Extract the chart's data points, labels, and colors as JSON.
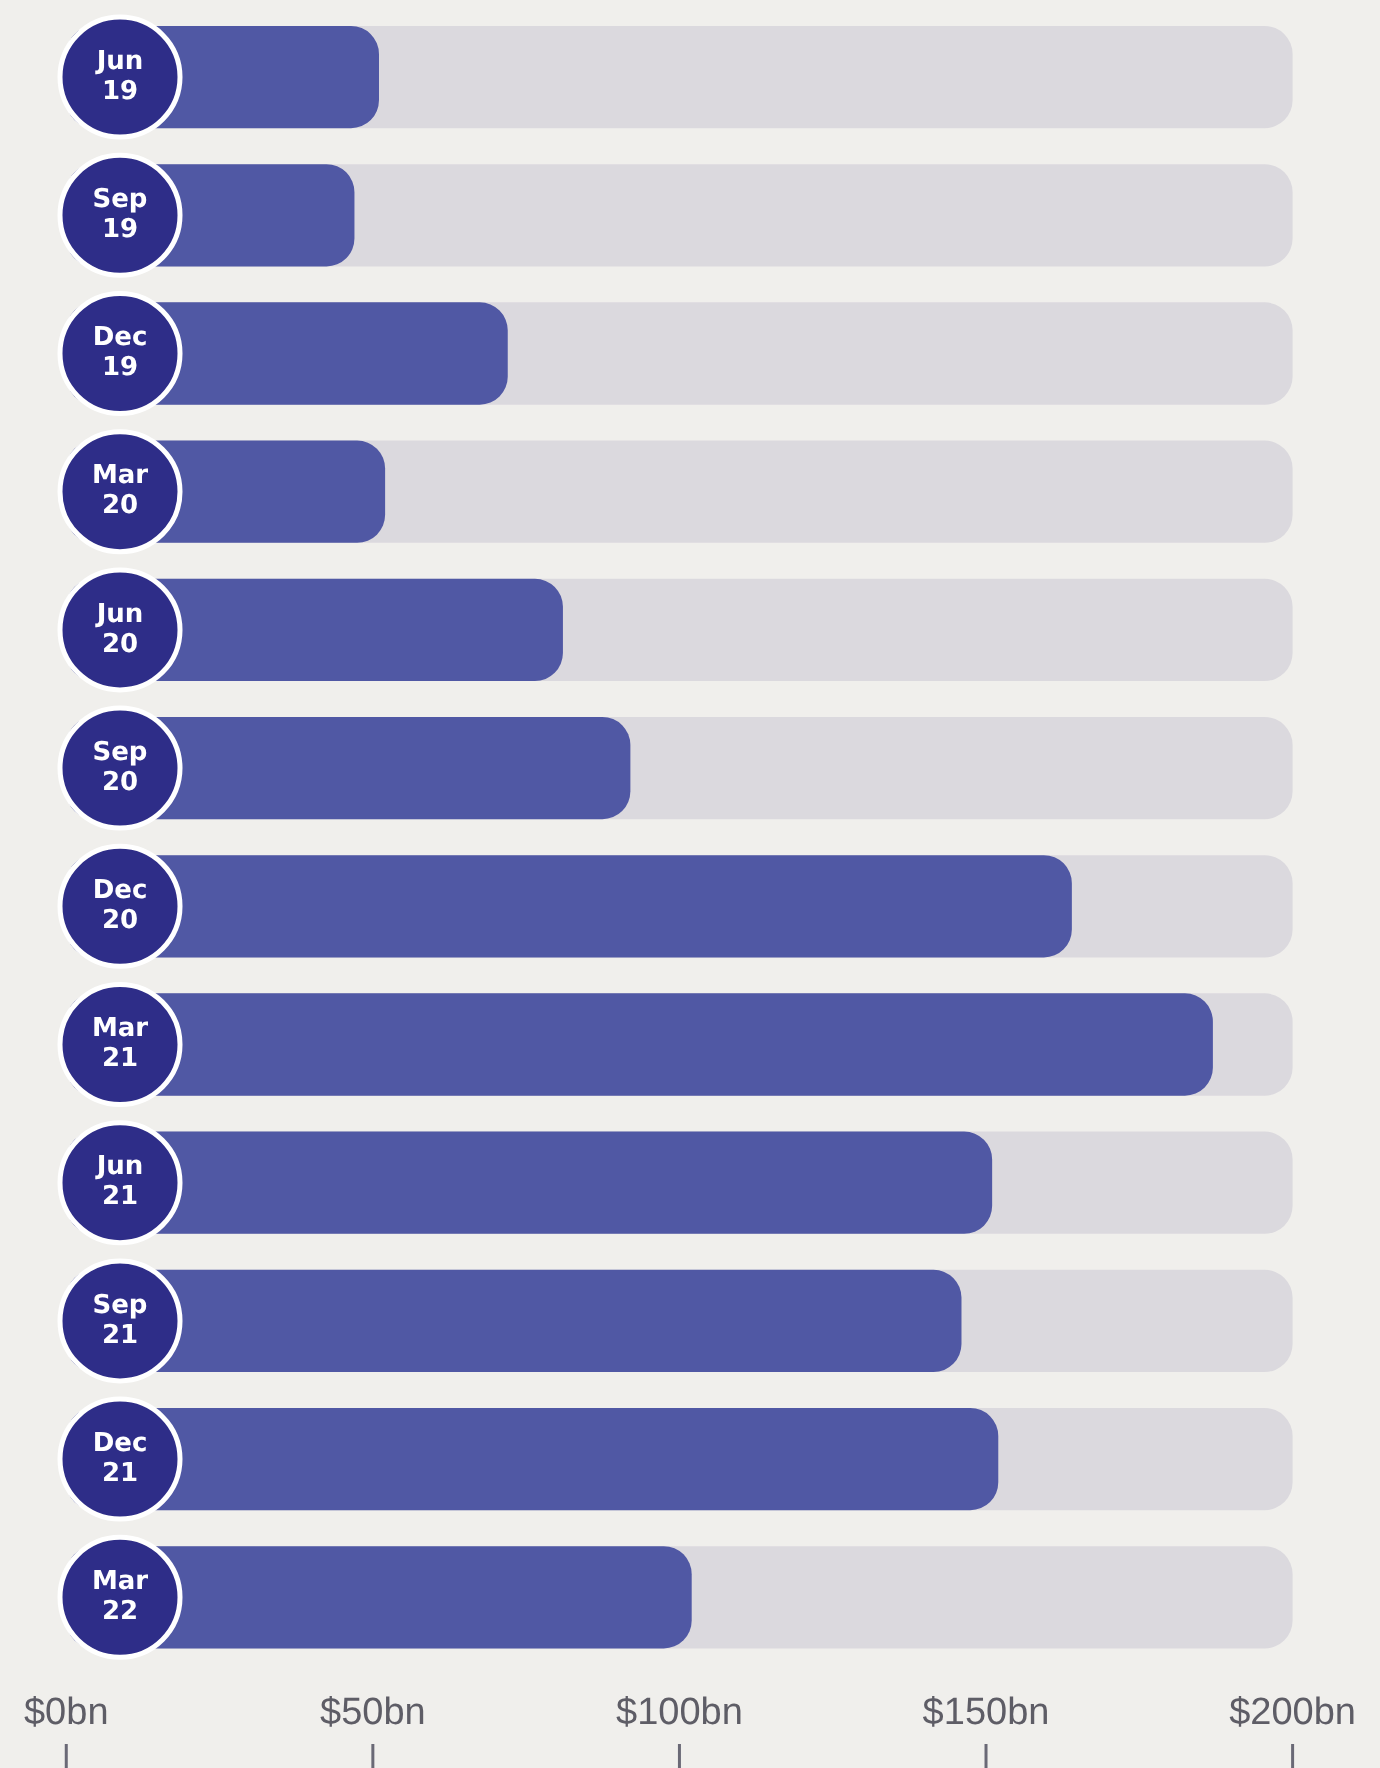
{
  "chart_data": {
    "type": "bar",
    "orientation": "horizontal",
    "categories": [
      "Jun 19",
      "Sep 19",
      "Dec 19",
      "Mar 20",
      "Jun 20",
      "Sep 20",
      "Dec 20",
      "Mar 21",
      "Jun 21",
      "Sep 21",
      "Dec 21",
      "Mar 22"
    ],
    "values": [
      51,
      47,
      72,
      52,
      81,
      92,
      164,
      187,
      151,
      146,
      152,
      102
    ],
    "color": "#5058a4",
    "xlim": [
      0,
      200
    ],
    "xticks": [
      {
        "value": 0,
        "label": "$0bn"
      },
      {
        "value": 50,
        "label": "$50bn"
      },
      {
        "value": 100,
        "label": "$100bn"
      },
      {
        "value": 150,
        "label": "$150bn"
      },
      {
        "value": 200,
        "label": "$200bn"
      }
    ],
    "grid": false,
    "legend": false
  }
}
